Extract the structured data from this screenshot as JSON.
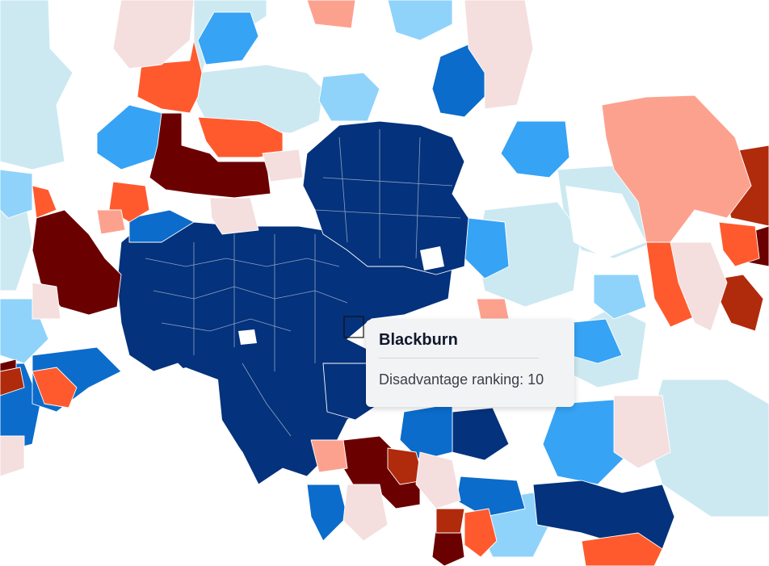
{
  "map": {
    "palette": {
      "rank_very_low": "#6b0000",
      "rank_low": "#b02a0c",
      "rank_low_mid": "#ff5a2e",
      "rank_mid_low": "#fda18f",
      "rank_mid": "#f4dede",
      "rank_mid_high": "#cce9f2",
      "rank_high_mid": "#8fd3fb",
      "rank_high": "#36a3f5",
      "rank_very_high": "#0b6ccb",
      "rank_top": "#04327c",
      "background": "#ffffff"
    },
    "selected_region": "Blackburn"
  },
  "tooltip": {
    "title": "Blackburn",
    "metric_label": "Disadvantage ranking",
    "metric_value": "10",
    "metric_text": "Disadvantage ranking: 10"
  }
}
